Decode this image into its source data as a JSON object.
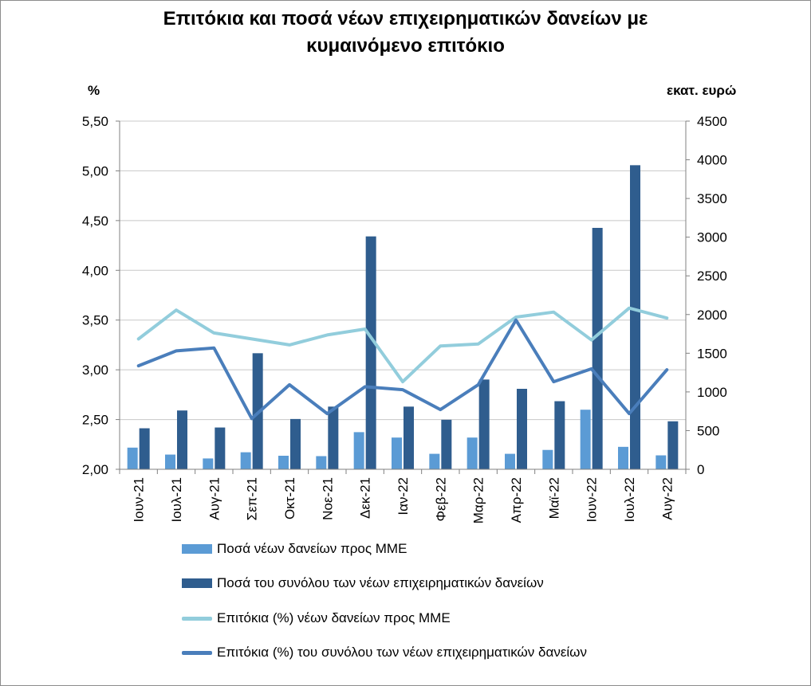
{
  "title_line1": "Επιτόκια και ποσά νέων επιχειρηματικών δανείων με",
  "title_line2": "κυμαινόμενο επιτόκιο",
  "left_unit": "%",
  "right_unit": "εκατ. ευρώ",
  "colors": {
    "sme_bar": "#5b9bd5",
    "total_bar": "#2f5d8e",
    "sme_line": "#92cddc",
    "total_line": "#4a7ebb",
    "grid": "#c8c8c8",
    "axis": "#808080"
  },
  "chart_data": {
    "type": "bar+line",
    "categories": [
      "Ιουν-21",
      "Ιουλ-21",
      "Αυγ-21",
      "Σεπ-21",
      "Οκτ-21",
      "Νοε-21",
      "Δεκ-21",
      "Ιαν-22",
      "Φεβ-22",
      "Μαρ-22",
      "Απρ-22",
      "Μαϊ-22",
      "Ιουν-22",
      "Ιουλ-22",
      "Αυγ-22"
    ],
    "left_axis": {
      "ylim": [
        2.0,
        5.5
      ],
      "ticks": [
        "2,00",
        "2,50",
        "3,00",
        "3,50",
        "4,00",
        "4,50",
        "5,00",
        "5,50"
      ],
      "values": [
        2.0,
        2.5,
        3.0,
        3.5,
        4.0,
        4.5,
        5.0,
        5.5
      ]
    },
    "right_axis": {
      "ylim": [
        0,
        4500
      ],
      "ticks": [
        "0",
        "500",
        "1000",
        "1500",
        "2000",
        "2500",
        "3000",
        "3500",
        "4000",
        "4500"
      ],
      "values": [
        0,
        500,
        1000,
        1500,
        2000,
        2500,
        3000,
        3500,
        4000,
        4500
      ]
    },
    "series": [
      {
        "name": "Ποσά νέων δανείων προς ΜΜΕ",
        "kind": "bar",
        "axis": "right",
        "values": [
          280,
          190,
          140,
          220,
          175,
          170,
          480,
          410,
          200,
          410,
          200,
          250,
          770,
          290,
          180
        ]
      },
      {
        "name": "Ποσά του συνόλου των νέων επιχειρηματικών δανείων",
        "kind": "bar",
        "axis": "right",
        "values": [
          530,
          760,
          540,
          1500,
          650,
          810,
          3010,
          810,
          640,
          1160,
          1040,
          880,
          3120,
          3930,
          620
        ]
      },
      {
        "name": "Επιτόκια (%) νέων δανείων προς ΜΜΕ",
        "kind": "line",
        "axis": "left",
        "values": [
          3.31,
          3.6,
          3.37,
          3.31,
          3.25,
          3.35,
          3.41,
          2.88,
          3.24,
          3.26,
          3.53,
          3.58,
          3.3,
          3.62,
          3.52
        ]
      },
      {
        "name": "Επιτόκια (%) του συνόλου των νέων επιχειρηματικών δανείων",
        "kind": "line",
        "axis": "left",
        "values": [
          3.04,
          3.19,
          3.22,
          2.51,
          2.85,
          2.56,
          2.83,
          2.8,
          2.6,
          2.85,
          3.5,
          2.88,
          3.01,
          2.56,
          3.0
        ]
      }
    ]
  }
}
